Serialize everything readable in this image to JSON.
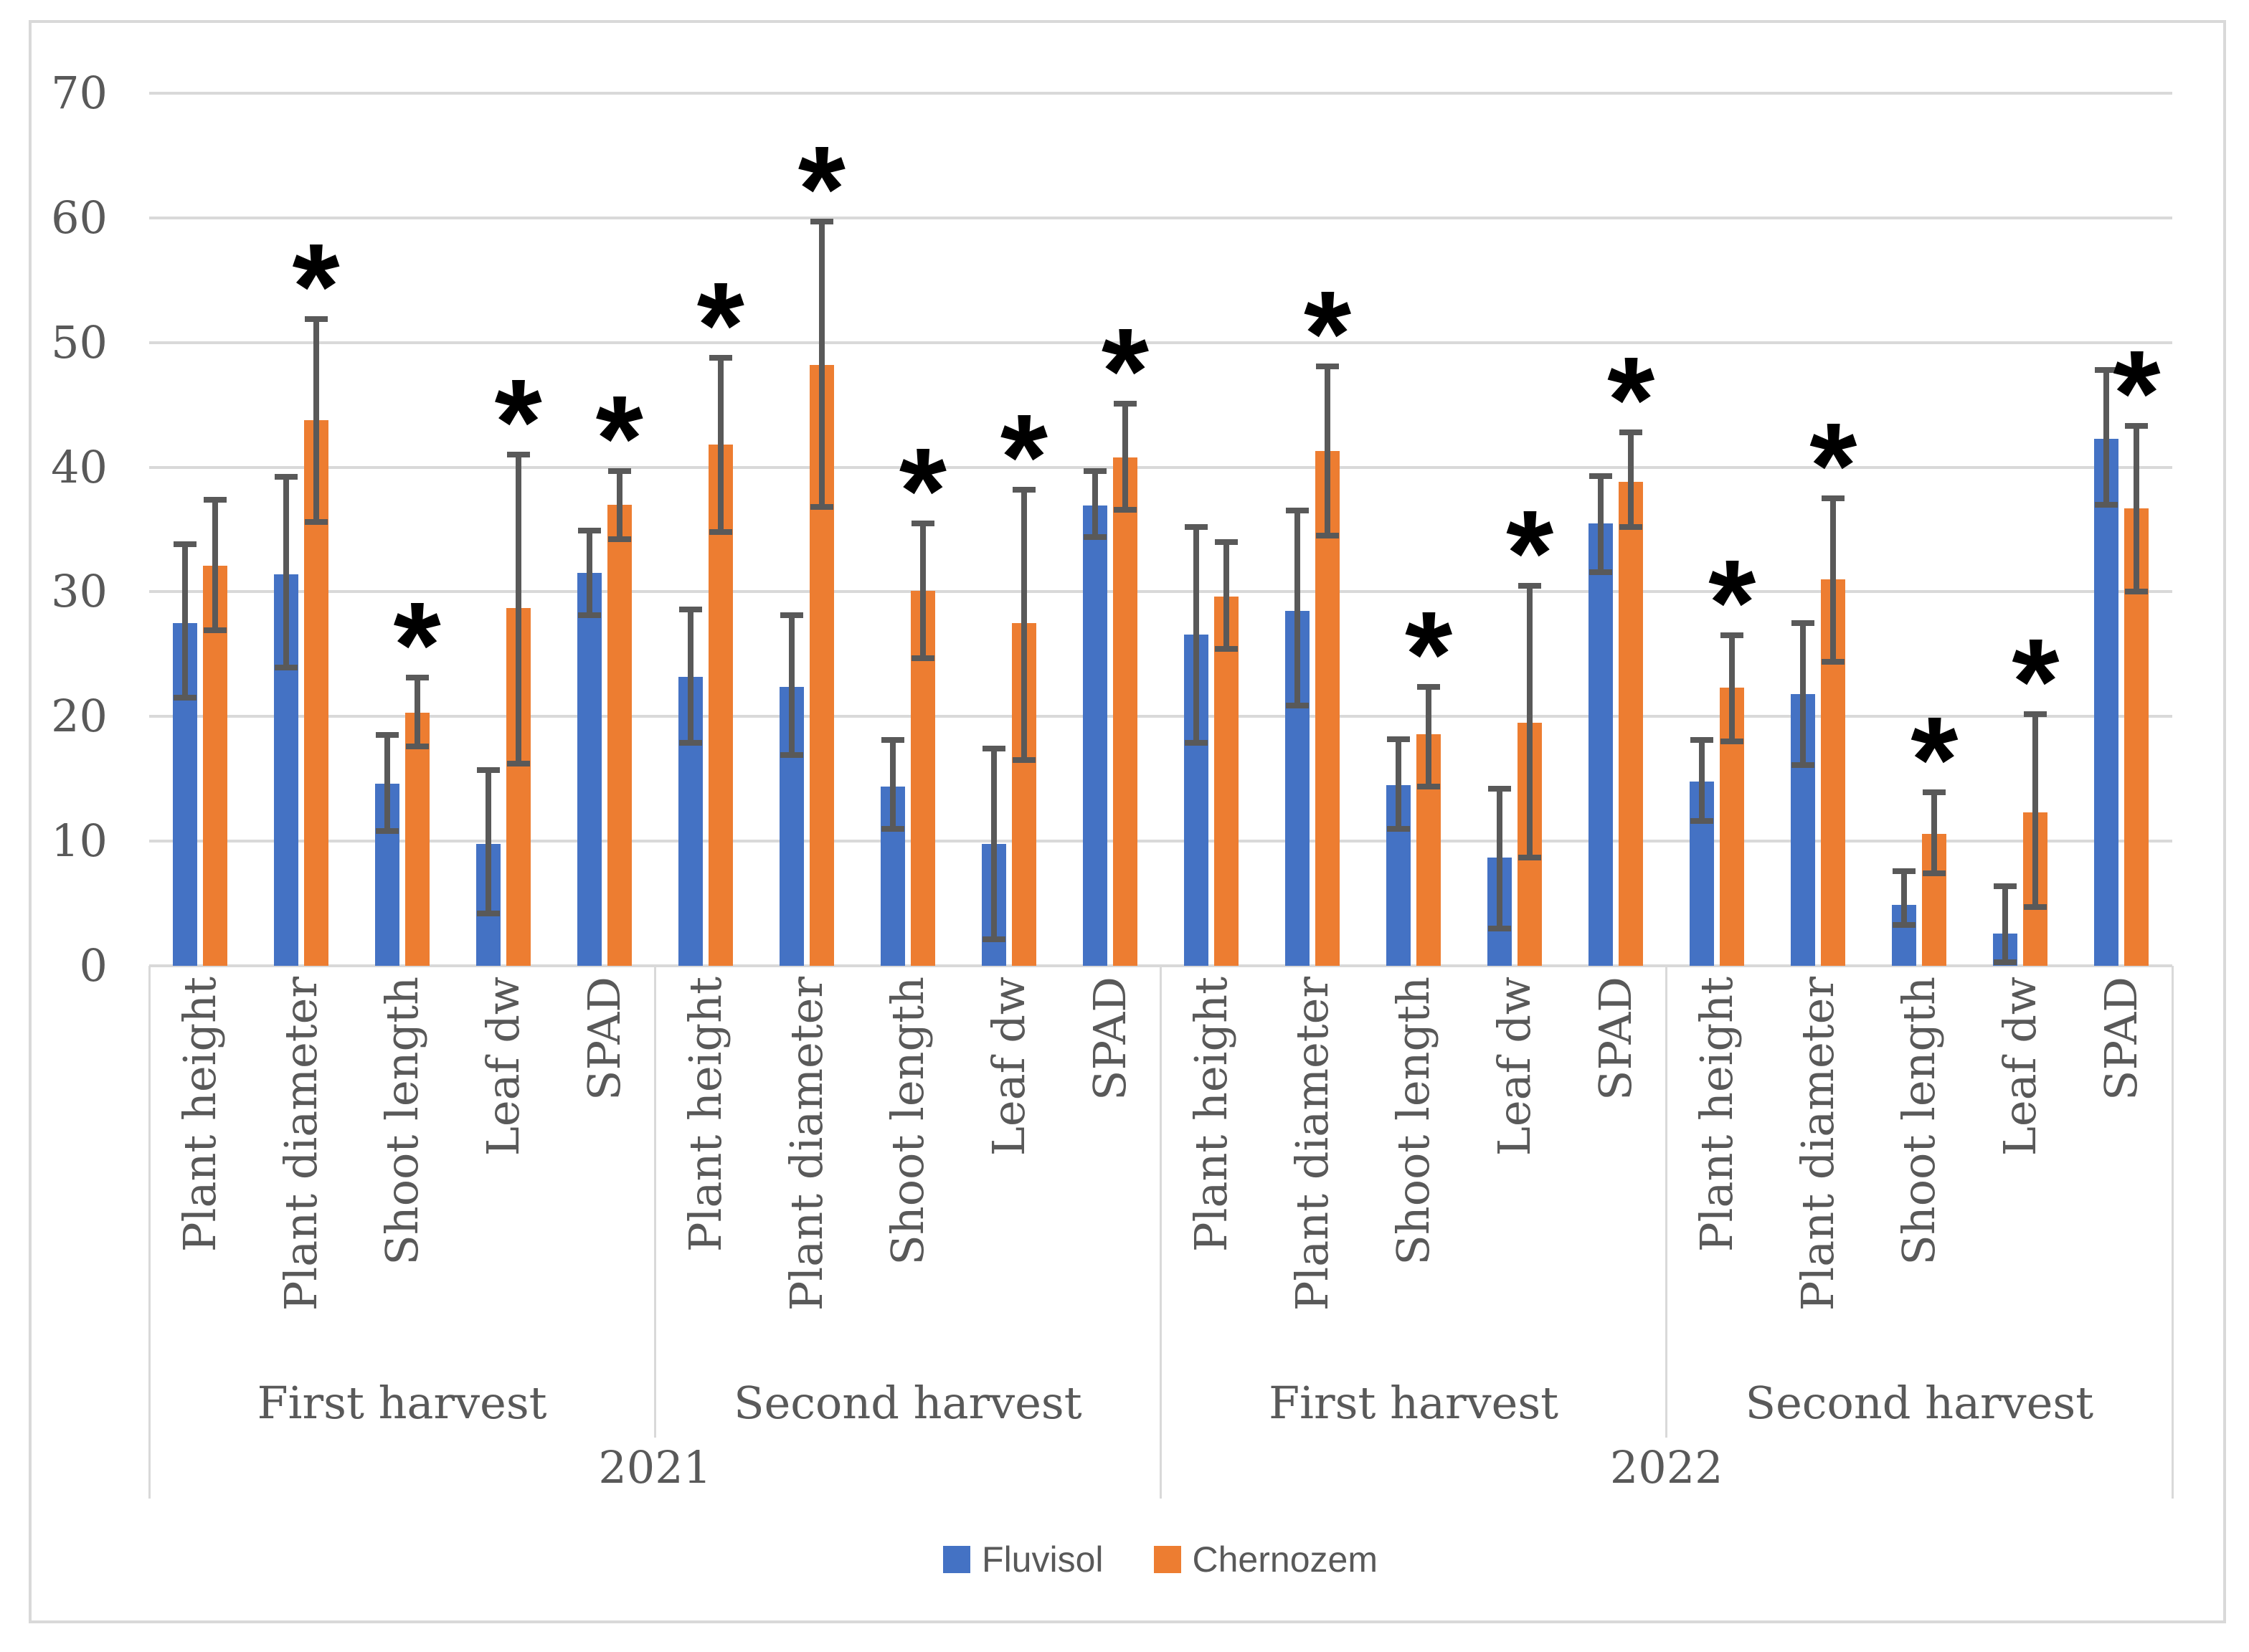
{
  "chart_data": {
    "type": "bar",
    "title": "",
    "xlabel": "",
    "ylabel": "",
    "ylim": [
      0,
      70
    ],
    "yticks": [
      0,
      10,
      20,
      30,
      40,
      50,
      60,
      70
    ],
    "grid": true,
    "legend_position": "bottom",
    "significance_marker": "*",
    "colors": {
      "fluvisol": "#4472C4",
      "chernozem": "#ED7D31",
      "error_bar": "#595959",
      "gridline": "#D9D9D9",
      "text": "#595959"
    },
    "legend": [
      {
        "label": "Fluvisol",
        "color": "#4472C4"
      },
      {
        "label": "Chernozem",
        "color": "#ED7D31"
      }
    ],
    "groups": [
      {
        "year": "2021",
        "harvest": "First harvest",
        "categories": [
          {
            "label": "Plant height",
            "series": [
              {
                "name": "Fluvisol",
                "value": 27.5,
                "err_low": 21.5,
                "err_high": 33.8
              },
              {
                "name": "Chernozem",
                "value": 32.1,
                "err_low": 26.9,
                "err_high": 37.4
              }
            ],
            "significant": false
          },
          {
            "label": "Plant diameter",
            "series": [
              {
                "name": "Fluvisol",
                "value": 31.4,
                "err_low": 23.9,
                "err_high": 39.2
              },
              {
                "name": "Chernozem",
                "value": 43.8,
                "err_low": 35.6,
                "err_high": 51.9
              }
            ],
            "significant": true
          },
          {
            "label": "Shoot length",
            "series": [
              {
                "name": "Fluvisol",
                "value": 14.6,
                "err_low": 10.8,
                "err_high": 18.5
              },
              {
                "name": "Chernozem",
                "value": 20.3,
                "err_low": 17.6,
                "err_high": 23.1
              }
            ],
            "significant": true
          },
          {
            "label": "Leaf dw",
            "series": [
              {
                "name": "Fluvisol",
                "value": 9.8,
                "err_low": 4.2,
                "err_high": 15.7
              },
              {
                "name": "Chernozem",
                "value": 28.7,
                "err_low": 16.2,
                "err_high": 41.0
              }
            ],
            "significant": true
          },
          {
            "label": "SPAD",
            "series": [
              {
                "name": "Fluvisol",
                "value": 31.5,
                "err_low": 28.1,
                "err_high": 34.9
              },
              {
                "name": "Chernozem",
                "value": 37.0,
                "err_low": 34.2,
                "err_high": 39.7
              }
            ],
            "significant": true
          }
        ]
      },
      {
        "year": "2021",
        "harvest": "Second harvest",
        "categories": [
          {
            "label": "Plant height",
            "series": [
              {
                "name": "Fluvisol",
                "value": 23.2,
                "err_low": 17.9,
                "err_high": 28.6
              },
              {
                "name": "Chernozem",
                "value": 41.8,
                "err_low": 34.8,
                "err_high": 48.8
              }
            ],
            "significant": true
          },
          {
            "label": "Plant diameter",
            "series": [
              {
                "name": "Fluvisol",
                "value": 22.4,
                "err_low": 16.9,
                "err_high": 28.1
              },
              {
                "name": "Chernozem",
                "value": 48.2,
                "err_low": 36.8,
                "err_high": 59.7
              }
            ],
            "significant": true
          },
          {
            "label": "Shoot length",
            "series": [
              {
                "name": "Fluvisol",
                "value": 14.4,
                "err_low": 11.0,
                "err_high": 18.1
              },
              {
                "name": "Chernozem",
                "value": 30.1,
                "err_low": 24.7,
                "err_high": 35.5
              }
            ],
            "significant": true
          },
          {
            "label": "Leaf dw",
            "series": [
              {
                "name": "Fluvisol",
                "value": 9.8,
                "err_low": 2.1,
                "err_high": 17.4
              },
              {
                "name": "Chernozem",
                "value": 27.5,
                "err_low": 16.5,
                "err_high": 38.2
              }
            ],
            "significant": true
          },
          {
            "label": "SPAD",
            "series": [
              {
                "name": "Fluvisol",
                "value": 36.9,
                "err_low": 34.4,
                "err_high": 39.7
              },
              {
                "name": "Chernozem",
                "value": 40.8,
                "err_low": 36.6,
                "err_high": 45.1
              }
            ],
            "significant": true
          }
        ]
      },
      {
        "year": "2022",
        "harvest": "First harvest",
        "categories": [
          {
            "label": "Plant height",
            "series": [
              {
                "name": "Fluvisol",
                "value": 26.6,
                "err_low": 17.9,
                "err_high": 35.2
              },
              {
                "name": "Chernozem",
                "value": 29.6,
                "err_low": 25.4,
                "err_high": 34.0
              }
            ],
            "significant": false
          },
          {
            "label": "Plant diameter",
            "series": [
              {
                "name": "Fluvisol",
                "value": 28.5,
                "err_low": 20.9,
                "err_high": 36.5
              },
              {
                "name": "Chernozem",
                "value": 41.3,
                "err_low": 34.5,
                "err_high": 48.1
              }
            ],
            "significant": true
          },
          {
            "label": "Shoot length",
            "series": [
              {
                "name": "Fluvisol",
                "value": 14.5,
                "err_low": 11.0,
                "err_high": 18.2
              },
              {
                "name": "Chernozem",
                "value": 18.6,
                "err_low": 14.4,
                "err_high": 22.4
              }
            ],
            "significant": true
          },
          {
            "label": "Leaf dw",
            "series": [
              {
                "name": "Fluvisol",
                "value": 8.7,
                "err_low": 3.0,
                "err_high": 14.2
              },
              {
                "name": "Chernozem",
                "value": 19.5,
                "err_low": 8.7,
                "err_high": 30.5
              }
            ],
            "significant": true
          },
          {
            "label": "SPAD",
            "series": [
              {
                "name": "Fluvisol",
                "value": 35.5,
                "err_low": 31.6,
                "err_high": 39.3
              },
              {
                "name": "Chernozem",
                "value": 38.8,
                "err_low": 35.2,
                "err_high": 42.8
              }
            ],
            "significant": true
          }
        ]
      },
      {
        "year": "2022",
        "harvest": "Second harvest",
        "categories": [
          {
            "label": "Plant height",
            "series": [
              {
                "name": "Fluvisol",
                "value": 14.8,
                "err_low": 11.6,
                "err_high": 18.1
              },
              {
                "name": "Chernozem",
                "value": 22.3,
                "err_low": 18.0,
                "err_high": 26.5
              }
            ],
            "significant": true
          },
          {
            "label": "Plant diameter",
            "series": [
              {
                "name": "Fluvisol",
                "value": 21.8,
                "err_low": 16.1,
                "err_high": 27.5
              },
              {
                "name": "Chernozem",
                "value": 31.0,
                "err_low": 24.4,
                "err_high": 37.5
              }
            ],
            "significant": true
          },
          {
            "label": "Shoot length",
            "series": [
              {
                "name": "Fluvisol",
                "value": 4.9,
                "err_low": 3.3,
                "err_high": 7.6
              },
              {
                "name": "Chernozem",
                "value": 10.6,
                "err_low": 7.4,
                "err_high": 13.9
              }
            ],
            "significant": true
          },
          {
            "label": "Leaf dw",
            "series": [
              {
                "name": "Fluvisol",
                "value": 2.6,
                "err_low": 0.3,
                "err_high": 6.4
              },
              {
                "name": "Chernozem",
                "value": 12.3,
                "err_low": 4.7,
                "err_high": 20.2
              }
            ],
            "significant": true
          },
          {
            "label": "SPAD",
            "series": [
              {
                "name": "Fluvisol",
                "value": 42.3,
                "err_low": 37.0,
                "err_high": 47.8
              },
              {
                "name": "Chernozem",
                "value": 36.7,
                "err_low": 30.0,
                "err_high": 43.3
              }
            ],
            "significant": true
          }
        ]
      }
    ],
    "years": [
      {
        "label": "2021"
      },
      {
        "label": "2022"
      }
    ]
  }
}
